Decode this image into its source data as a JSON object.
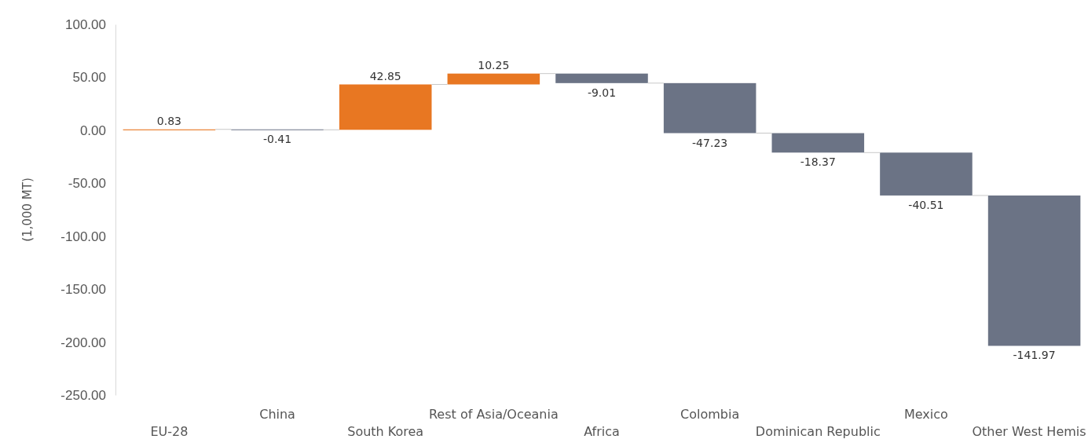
{
  "chart_data": {
    "type": "bar",
    "ylabel": "(1,000 MT)",
    "categories": [
      "EU-28",
      "China",
      "South Korea",
      "Rest of Asia/Oceania",
      "Africa",
      "Colombia",
      "Dominican Republic",
      "Mexico",
      "Other West Hemis"
    ],
    "values": [
      0.83,
      -0.41,
      42.85,
      10.25,
      -9.01,
      -47.23,
      -18.37,
      -40.51,
      -141.97
    ],
    "base": [
      0,
      0.83,
      0.42,
      43.27,
      53.52,
      44.51,
      -2.72,
      -21.09,
      -61.6
    ],
    "colors": [
      "#e87722",
      "#6b7385",
      "#e87722",
      "#e87722",
      "#6b7385",
      "#6b7385",
      "#6b7385",
      "#6b7385",
      "#6b7385"
    ],
    "ylim": [
      -250,
      100
    ],
    "yticks": [
      {
        "value": 100,
        "label": "100.00"
      },
      {
        "value": 50,
        "label": "50.00"
      },
      {
        "value": 0,
        "label": "0.00"
      },
      {
        "value": -50,
        "label": "-50.00"
      },
      {
        "value": -100,
        "label": "-100.00"
      },
      {
        "value": -150,
        "label": "-150.00"
      },
      {
        "value": -200,
        "label": "-200.00"
      },
      {
        "value": -250,
        "label": "-250.00"
      }
    ],
    "data_labels": true
  }
}
